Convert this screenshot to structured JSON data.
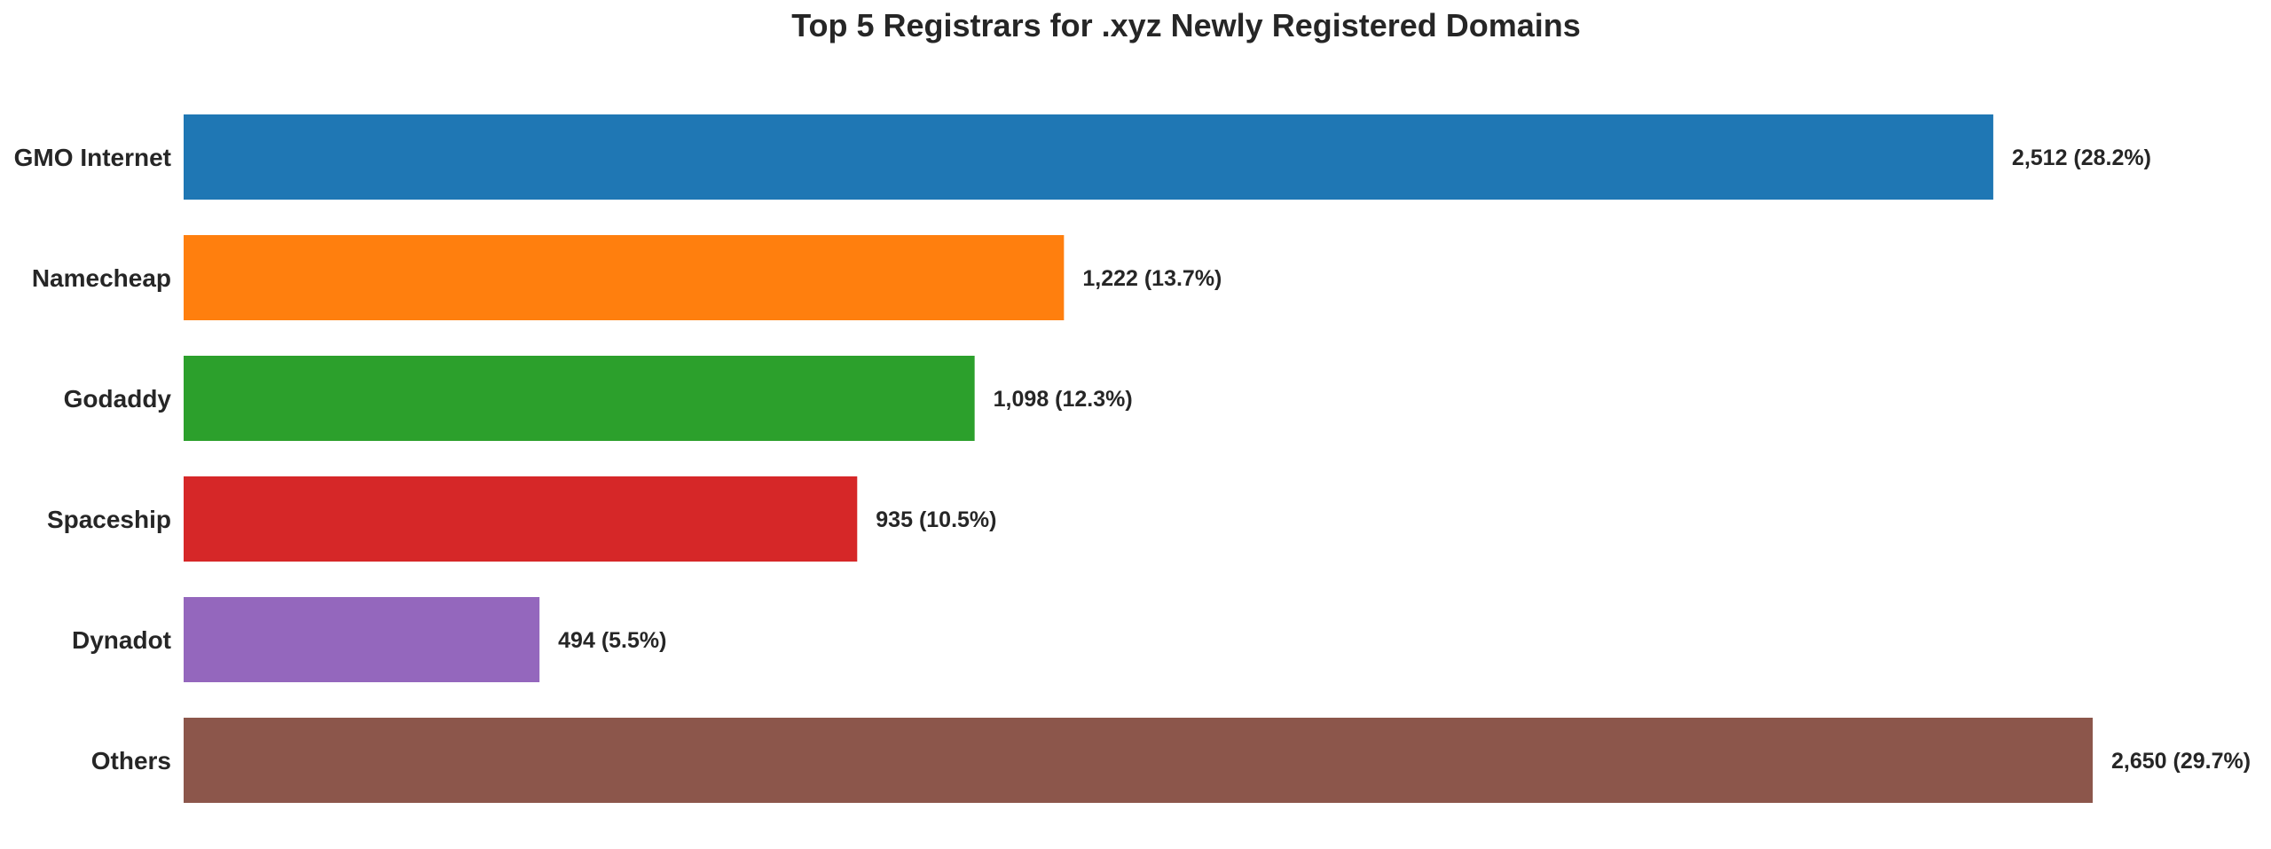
{
  "chart_data": {
    "type": "bar",
    "orientation": "horizontal",
    "title": "Top 5 Registrars for .xyz Newly Registered Domains",
    "xlabel": "",
    "ylabel": "",
    "categories": [
      "GMO Internet",
      "Namecheap",
      "Godaddy",
      "Spaceship",
      "Dynadot",
      "Others"
    ],
    "values": [
      2512,
      1222,
      1098,
      935,
      494,
      2650
    ],
    "data_labels": [
      "2,512 (28.2%)",
      "1,222 (13.7%)",
      "1,098 (12.3%)",
      "935 (10.5%)",
      "494 (5.5%)",
      "2,650 (29.7%)"
    ],
    "colors": [
      "#1f77b4",
      "#ff7f0e",
      "#2ca02c",
      "#d62728",
      "#9467bd",
      "#8c564b"
    ],
    "xlim": [
      0,
      2650
    ],
    "grid": false,
    "legend": "none"
  }
}
